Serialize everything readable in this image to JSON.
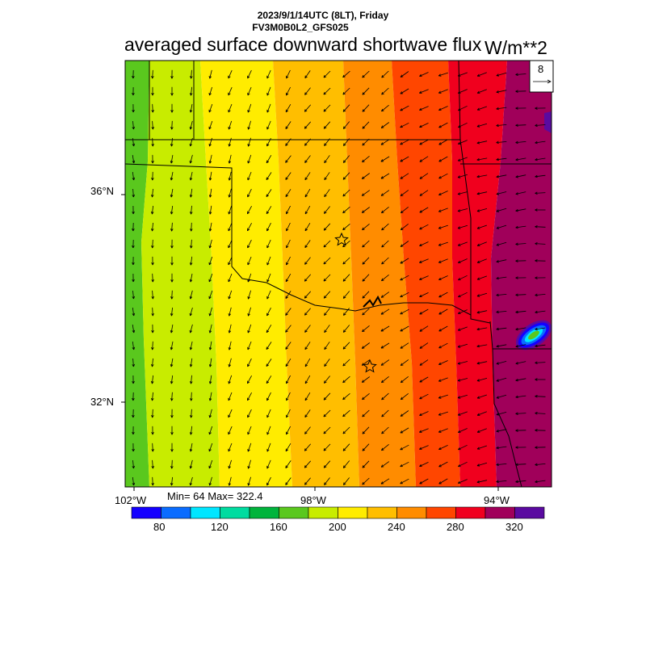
{
  "header": {
    "date_line": "2023/9/1/14UTC (8LT), Friday",
    "model_line": "FV3M0B0L2_GFS025",
    "title": "averaged surface downward shortwave flux",
    "units": "W/m**2"
  },
  "map": {
    "lat_labels": [
      "36°N",
      "32°N"
    ],
    "lon_labels": [
      "102°W",
      "98°W",
      "94°W"
    ],
    "wind_reference": "8",
    "stats": "Min= 64 Max= 322.4",
    "field_bands_west_to_east": [
      190,
      210,
      225,
      245,
      260,
      275,
      295,
      315
    ]
  },
  "colorbar": {
    "ticks": [
      "80",
      "120",
      "160",
      "200",
      "240",
      "280",
      "320"
    ],
    "colors": [
      "#1400ff",
      "#0a6cff",
      "#00e6ff",
      "#00dca0",
      "#00b43c",
      "#5ac81e",
      "#c8ec00",
      "#ffec00",
      "#ffbe00",
      "#ff8c00",
      "#ff4600",
      "#f0001e",
      "#a0005a",
      "#5a0aa0"
    ]
  }
}
